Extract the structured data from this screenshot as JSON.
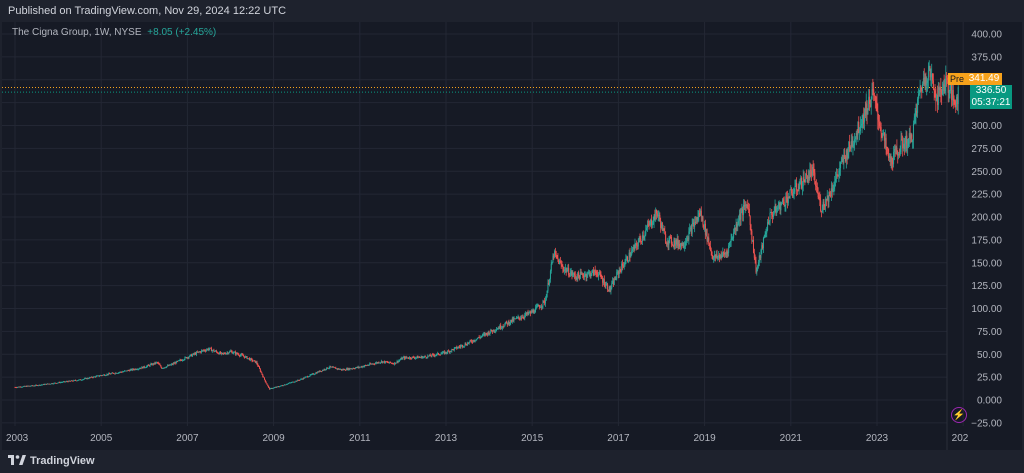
{
  "header": {
    "published": "Published on TradingView.com, Nov 29, 2024 12:22 UTC"
  },
  "legend": {
    "symbol": "The Cigna Group, 1W, NYSE",
    "change": "+8.05 (+2.45%)"
  },
  "price_tags": {
    "pre_label": "Pre",
    "pre_value": "341.49",
    "last_value": "336.50",
    "countdown": "05:37:21"
  },
  "footer": {
    "brand": "TradingView"
  },
  "colors": {
    "up": "#26a69a",
    "down": "#ef5350",
    "background": "#161a25",
    "grid": "#232734",
    "pre": "#f7a21b",
    "last": "#089981"
  },
  "chart_data": {
    "type": "line",
    "title": "The Cigna Group, 1W, NYSE",
    "xlabel": "",
    "ylabel": "",
    "x_ticks": [
      "2003",
      "2005",
      "2007",
      "2009",
      "2011",
      "2013",
      "2015",
      "2017",
      "2019",
      "2021",
      "2023",
      "202"
    ],
    "y_ticks": [
      "400.00",
      "375.00",
      "350.00",
      "325.00",
      "300.00",
      "275.00",
      "250.00",
      "225.00",
      "200.00",
      "175.00",
      "150.00",
      "125.00",
      "100.00",
      "75.00",
      "50.00",
      "25.00",
      "0.000",
      "−25.00"
    ],
    "ylim": [
      -25,
      400
    ],
    "xlim": [
      2003.0,
      2025.0
    ],
    "grid": true,
    "series": [
      {
        "x": [
          2003.0,
          2003.5,
          2004.0,
          2004.5,
          2005.0,
          2005.5,
          2006.0,
          2006.3,
          2006.4,
          2006.6,
          2007.0,
          2007.3,
          2007.5,
          2007.8,
          2008.0,
          2008.3,
          2008.6,
          2008.8,
          2008.9,
          2009.2,
          2009.6,
          2010.0,
          2010.3,
          2010.6,
          2011.0,
          2011.5,
          2011.8,
          2012.0,
          2012.5,
          2013.0,
          2013.5,
          2014.0,
          2014.5,
          2015.0,
          2015.3,
          2015.5,
          2015.7,
          2016.0,
          2016.5,
          2016.8,
          2017.0,
          2017.5,
          2017.9,
          2018.1,
          2018.5,
          2018.9,
          2019.2,
          2019.5,
          2019.8,
          2020.0,
          2020.2,
          2020.5,
          2020.9,
          2021.2,
          2021.5,
          2021.7,
          2021.9,
          2022.2,
          2022.5,
          2022.9,
          2023.1,
          2023.3,
          2023.6,
          2023.8,
          2024.0,
          2024.2,
          2024.4,
          2024.6,
          2024.8,
          2024.9
        ],
        "values": [
          14,
          16,
          19,
          22,
          27,
          31,
          36,
          41,
          35,
          38,
          47,
          53,
          56,
          50,
          53,
          48,
          41,
          21,
          12,
          16,
          22,
          30,
          36,
          33,
          36,
          42,
          40,
          46,
          47,
          52,
          62,
          74,
          86,
          96,
          108,
          160,
          145,
          135,
          140,
          120,
          140,
          175,
          205,
          175,
          170,
          205,
          155,
          160,
          200,
          215,
          140,
          200,
          220,
          235,
          250,
          210,
          225,
          260,
          290,
          335,
          295,
          260,
          280,
          285,
          340,
          360,
          330,
          350,
          325,
          336.5
        ]
      }
    ],
    "annotations": [
      "Pre 341.49",
      "336.50",
      "05:37:21"
    ]
  }
}
